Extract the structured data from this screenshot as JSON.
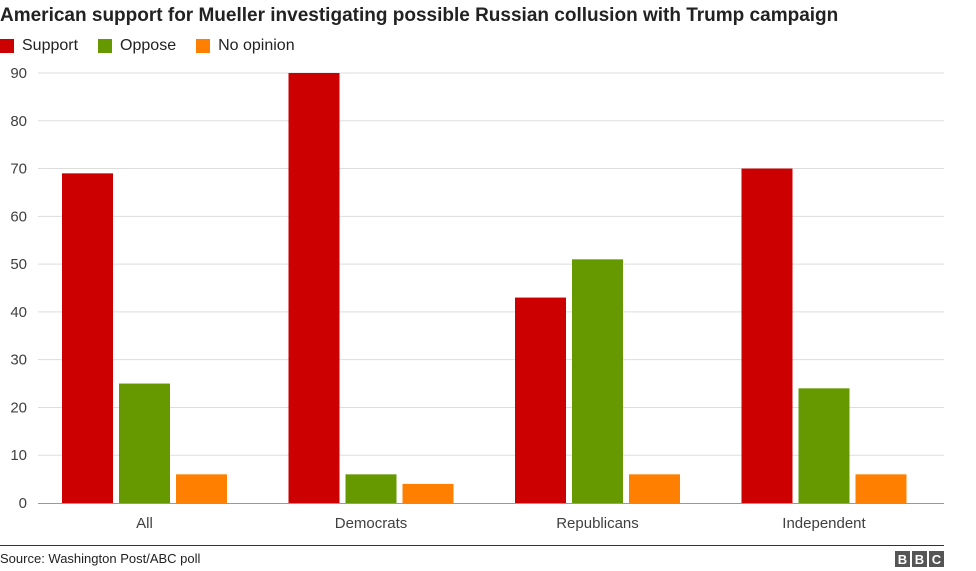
{
  "chart_data": {
    "type": "bar",
    "title": "American support for Mueller investigating possible Russian collusion with Trump campaign",
    "categories": [
      "All",
      "Democrats",
      "Republicans",
      "Independent"
    ],
    "series": [
      {
        "name": "Support",
        "values": [
          69,
          90,
          43,
          70
        ],
        "color": "#cc0000"
      },
      {
        "name": "Oppose",
        "values": [
          25,
          6,
          51,
          24
        ],
        "color": "#669900"
      },
      {
        "name": "No opinion",
        "values": [
          6,
          4,
          6,
          6
        ],
        "color": "#ff7f00"
      }
    ],
    "ylim": [
      0,
      90
    ],
    "yticks": [
      0,
      10,
      20,
      30,
      40,
      50,
      60,
      70,
      80,
      90
    ],
    "xlabel": "",
    "ylabel": "",
    "grid": true,
    "legend_position": "top-left"
  },
  "footer": {
    "source": "Source: Washington Post/ABC poll",
    "logo_letters": [
      "B",
      "B",
      "C"
    ]
  }
}
